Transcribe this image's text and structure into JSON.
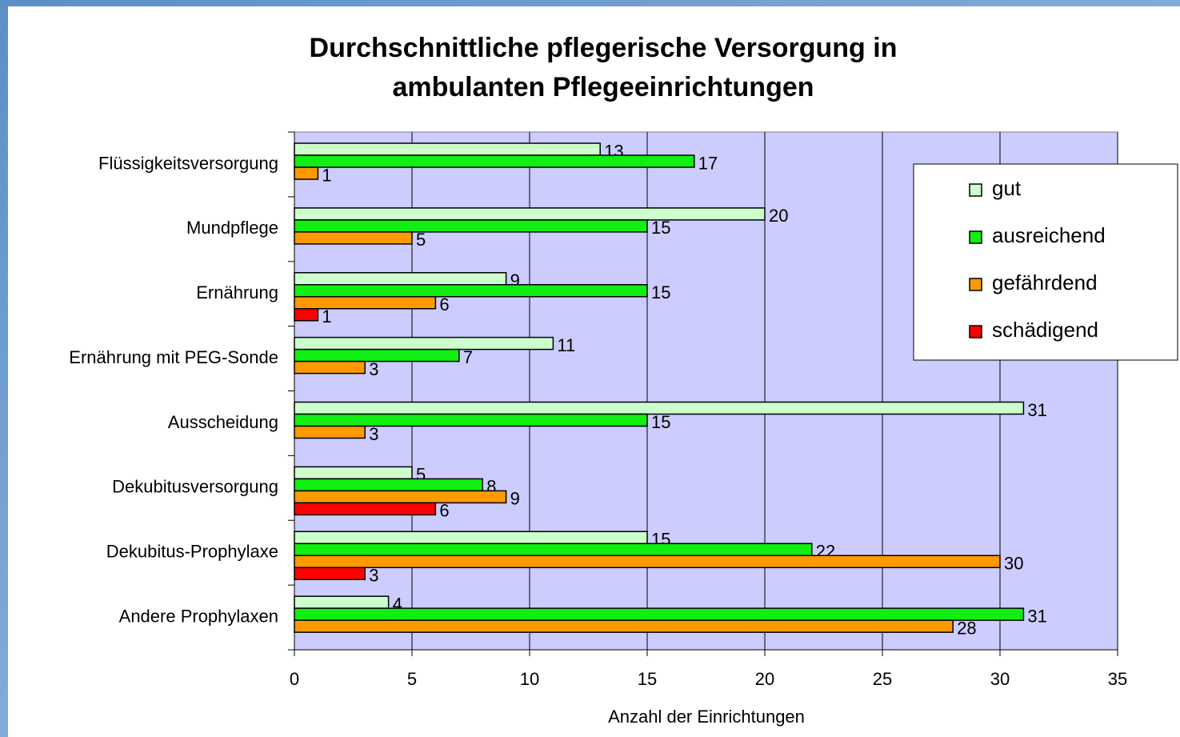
{
  "chart_data": {
    "type": "hbar",
    "title": [
      "Durchschnittliche pflegerische Versorgung in",
      "ambulanten Pflegeeinrichtungen"
    ],
    "x_label": "Anzahl der Einrichtungen",
    "categories": [
      "Flüssigkeitsversorgung",
      "Mundpflege",
      "Ernährung",
      "Ernährung mit PEG-Sonde",
      "Ausscheidung",
      "Dekubitusversorgung",
      "Dekubitus-Prophylaxe",
      "Andere Prophylaxen"
    ],
    "series": [
      {
        "name": "gut",
        "color": "#ccffcc",
        "values": [
          13,
          20,
          9,
          11,
          31,
          5,
          15,
          4
        ]
      },
      {
        "name": "ausreichend",
        "color": "#11ee11",
        "values": [
          17,
          15,
          15,
          7,
          15,
          8,
          22,
          31
        ]
      },
      {
        "name": "gefährdend",
        "color": "#ff9900",
        "values": [
          1,
          5,
          6,
          3,
          3,
          9,
          30,
          28
        ]
      },
      {
        "name": "schädigend",
        "color": "#ff0000",
        "values": [
          null,
          null,
          1,
          null,
          null,
          6,
          3,
          null
        ]
      }
    ],
    "xlim": [
      0,
      35
    ],
    "xticks": [
      0,
      5,
      10,
      15,
      20,
      25,
      30,
      35
    ],
    "grid": true,
    "plot_background": "#ccccff",
    "legend": "right"
  }
}
